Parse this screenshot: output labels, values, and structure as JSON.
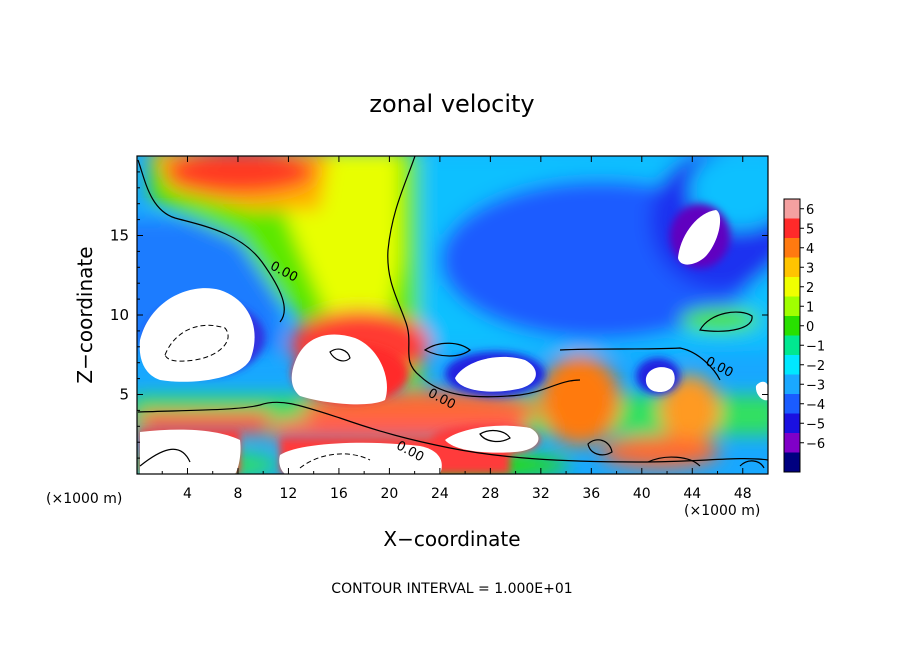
{
  "chart_data": {
    "type": "heatmap",
    "title": "zonal velocity",
    "xlabel": "X−coordinate",
    "ylabel": "Z−coordinate",
    "x_unit_label_left": "(×1000 m)",
    "x_unit_label_right": "(×1000 m)",
    "footer": "CONTOUR INTERVAL = 1.000E+01",
    "xlim": [
      0,
      50
    ],
    "ylim": [
      0,
      20
    ],
    "x_ticks": [
      4,
      8,
      12,
      16,
      20,
      24,
      28,
      32,
      36,
      40,
      44,
      48
    ],
    "y_ticks": [
      5,
      10,
      15
    ],
    "colorbar": {
      "ticks": [
        "6",
        "5",
        "4",
        "3",
        "2",
        "1",
        "0",
        "−1",
        "−2",
        "−3",
        "−4",
        "−5",
        "−6"
      ],
      "colors": [
        "#f4a0a0",
        "#ff2a2a",
        "#ff7a10",
        "#ffc400",
        "#f0ff00",
        "#a0ff00",
        "#28e000",
        "#00e890",
        "#00e8ff",
        "#1aa8ff",
        "#1a5cff",
        "#1a10e0",
        "#8000c8",
        "#000080"
      ]
    },
    "contour_labels": [
      {
        "text": "0.00",
        "x": 11.5,
        "z": 12.5
      },
      {
        "text": "0.00",
        "x": 24.0,
        "z": 4.5
      },
      {
        "text": "0.00",
        "x": 21.5,
        "z": 1.2
      },
      {
        "text": "0.00",
        "x": 46.0,
        "z": 6.5
      }
    ]
  }
}
